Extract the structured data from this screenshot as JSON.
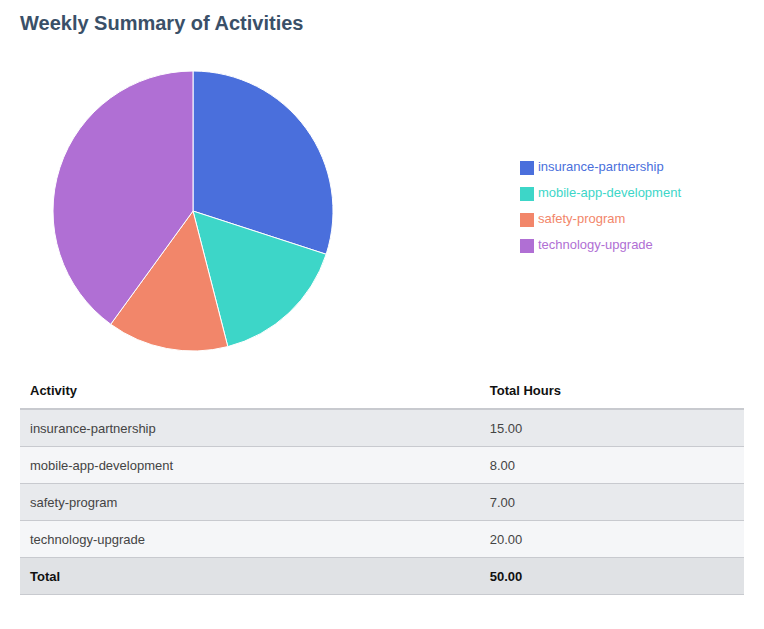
{
  "chart_data": {
    "type": "pie",
    "title": "Weekly Summary of Activities",
    "categories": [
      "insurance-partnership",
      "mobile-app-development",
      "safety-program",
      "technology-upgrade"
    ],
    "values": [
      15,
      8,
      7,
      20
    ],
    "colors": [
      "#4a6fdc",
      "#3dd6c8",
      "#f2866a",
      "#b06fd4"
    ],
    "legend": "right",
    "table": {
      "headers": [
        "Activity",
        "Total Hours"
      ],
      "rows": [
        [
          "insurance-partnership",
          "15.00"
        ],
        [
          "mobile-app-development",
          "8.00"
        ],
        [
          "safety-program",
          "7.00"
        ],
        [
          "technology-upgrade",
          "20.00"
        ]
      ],
      "total": [
        "Total",
        "50.00"
      ]
    }
  }
}
